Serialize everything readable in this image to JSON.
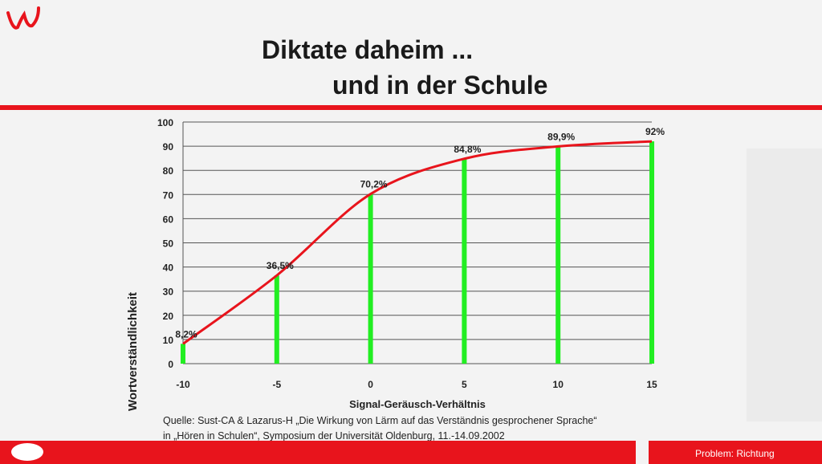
{
  "slide": {
    "title_line1": "Diktate daheim ...",
    "title_line2": "und in der Schule",
    "source_line1": "Quelle: Sust-CA & Lazarus-H „Die Wirkung von Lärm auf das Verständnis gesprochener Sprache“",
    "source_line2": "in „Hören in Schulen“, Symposium der Universität Oldenburg, 11.-14.09.2002",
    "footer": "Problem: Richtung",
    "colors": {
      "accent": "#e8141c",
      "bar": "#22ee22",
      "curve": "#e8141c"
    }
  },
  "chart_data": {
    "type": "bar",
    "title": "",
    "xlabel": "Signal-Geräusch-Verhältnis",
    "ylabel": "Wortverständlichkeit",
    "x": [
      -10,
      -5,
      0,
      5,
      10,
      15
    ],
    "categories": [
      "-10",
      "-5",
      "0",
      "5",
      "10",
      "15"
    ],
    "values": [
      8.2,
      36.5,
      70.2,
      84.8,
      89.9,
      92
    ],
    "data_labels": [
      "8,2%",
      "36,5%",
      "70,2%",
      "84,8%",
      "89,9%",
      "92%"
    ],
    "ylim": [
      0,
      100
    ],
    "yticks": [
      "0",
      "10",
      "20",
      "30",
      "40",
      "50",
      "60",
      "70",
      "80",
      "90",
      "100"
    ],
    "grid": true,
    "overlay": "smooth red curve through bar tops"
  }
}
